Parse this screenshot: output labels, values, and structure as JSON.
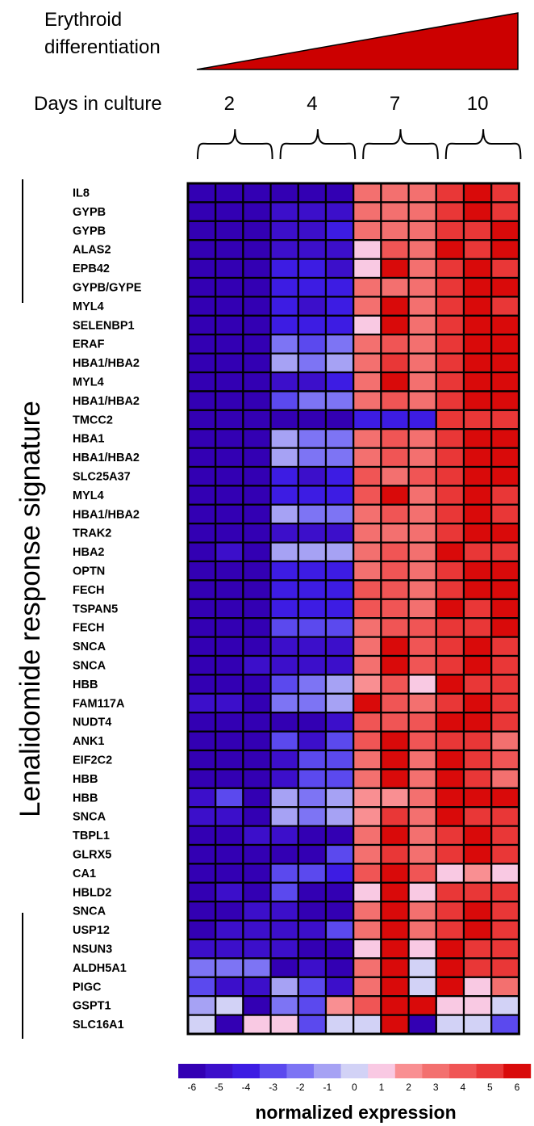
{
  "header": {
    "differentiation_label": [
      "Erythroid",
      "differentiation"
    ],
    "days_label": "Days in culture",
    "triangle_color": "#cc0000"
  },
  "signature_label": "Lenalidomide response signature",
  "legend": {
    "title": "normalized expression",
    "ticks": [
      "-6",
      "-5",
      "-4",
      "-3",
      "-2",
      "-1",
      "0",
      "1",
      "2",
      "3",
      "4",
      "5",
      "6"
    ],
    "colors": [
      "#3300b3",
      "#3c0fca",
      "#3d1ce3",
      "#5b49ee",
      "#7d74f4",
      "#a6a2f4",
      "#d2d2f6",
      "#f9c9e3",
      "#f98f92",
      "#f3706f",
      "#f05555",
      "#e93737",
      "#d90a0a"
    ]
  },
  "chart_data": {
    "type": "heatmap",
    "title": "",
    "xlabel": "Days in culture",
    "ylabel": "Lenalidomide response signature",
    "day_groups": [
      "2",
      "4",
      "7",
      "10"
    ],
    "replicates_per_group": 3,
    "value_range": [
      -6,
      6
    ],
    "rows": [
      {
        "gene": "IL8",
        "values": [
          -6,
          -6,
          -6,
          -6,
          -6,
          -6,
          3,
          3,
          3,
          5,
          6,
          5
        ]
      },
      {
        "gene": "GYPB",
        "values": [
          -6,
          -6,
          -6,
          -5,
          -5,
          -5,
          3,
          3,
          3,
          5,
          6,
          5
        ]
      },
      {
        "gene": "GYPB",
        "values": [
          -6,
          -6,
          -6,
          -5,
          -5,
          -4,
          3,
          3,
          3,
          5,
          5,
          6
        ]
      },
      {
        "gene": "ALAS2",
        "values": [
          -6,
          -6,
          -6,
          -5,
          -5,
          -5,
          1,
          4,
          3,
          6,
          5,
          6
        ]
      },
      {
        "gene": "EPB42",
        "values": [
          -6,
          -6,
          -6,
          -4,
          -4,
          -5,
          1,
          6,
          3,
          5,
          6,
          5
        ]
      },
      {
        "gene": "GYPB/GYPE",
        "values": [
          -6,
          -6,
          -6,
          -4,
          -4,
          -4,
          3,
          3,
          3,
          5,
          6,
          6
        ]
      },
      {
        "gene": "MYL4",
        "values": [
          -6,
          -6,
          -6,
          -4,
          -5,
          -4,
          3,
          6,
          3,
          5,
          6,
          5
        ]
      },
      {
        "gene": "SELENBP1",
        "values": [
          -6,
          -6,
          -6,
          -4,
          -4,
          -4,
          1,
          6,
          3,
          5,
          6,
          6
        ]
      },
      {
        "gene": "ERAF",
        "values": [
          -6,
          -6,
          -6,
          -2,
          -3,
          -2,
          3,
          4,
          3,
          5,
          6,
          6
        ]
      },
      {
        "gene": "HBA1/HBA2",
        "values": [
          -6,
          -6,
          -6,
          -1,
          -2,
          -1,
          3,
          5,
          3,
          5,
          6,
          6
        ]
      },
      {
        "gene": "MYL4",
        "values": [
          -6,
          -6,
          -6,
          -5,
          -5,
          -4,
          3,
          6,
          3,
          5,
          6,
          6
        ]
      },
      {
        "gene": "HBA1/HBA2",
        "values": [
          -6,
          -6,
          -6,
          -3,
          -2,
          -2,
          3,
          4,
          3,
          5,
          6,
          6
        ]
      },
      {
        "gene": "TMCC2",
        "values": [
          -6,
          -6,
          -6,
          -6,
          -6,
          -6,
          -4,
          -4,
          -4,
          5,
          5,
          5
        ]
      },
      {
        "gene": "HBA1",
        "values": [
          -6,
          -6,
          -6,
          -1,
          -2,
          -2,
          3,
          4,
          3,
          5,
          6,
          6
        ]
      },
      {
        "gene": "HBA1/HBA2",
        "values": [
          -6,
          -6,
          -6,
          -1,
          -2,
          -2,
          3,
          4,
          3,
          5,
          6,
          6
        ]
      },
      {
        "gene": "SLC25A37",
        "values": [
          -6,
          -6,
          -6,
          -4,
          -5,
          -4,
          4,
          3,
          4,
          5,
          6,
          6
        ]
      },
      {
        "gene": "MYL4",
        "values": [
          -6,
          -6,
          -6,
          -4,
          -4,
          -4,
          4,
          6,
          3,
          5,
          6,
          5
        ]
      },
      {
        "gene": "HBA1/HBA2",
        "values": [
          -6,
          -6,
          -6,
          -1,
          -2,
          -2,
          3,
          4,
          3,
          5,
          6,
          5
        ]
      },
      {
        "gene": "TRAK2",
        "values": [
          -6,
          -6,
          -6,
          -5,
          -5,
          -5,
          3,
          3,
          3,
          5,
          6,
          6
        ]
      },
      {
        "gene": "HBA2",
        "values": [
          -6,
          -5,
          -6,
          -1,
          -1,
          -1,
          3,
          4,
          3,
          6,
          5,
          5
        ]
      },
      {
        "gene": "OPTN",
        "values": [
          -6,
          -6,
          -6,
          -4,
          -4,
          -4,
          3,
          4,
          3,
          5,
          6,
          6
        ]
      },
      {
        "gene": "FECH",
        "values": [
          -6,
          -6,
          -6,
          -4,
          -4,
          -4,
          4,
          4,
          3,
          5,
          6,
          6
        ]
      },
      {
        "gene": "TSPAN5",
        "values": [
          -6,
          -6,
          -6,
          -4,
          -4,
          -4,
          4,
          4,
          3,
          6,
          5,
          6
        ]
      },
      {
        "gene": "FECH",
        "values": [
          -6,
          -6,
          -6,
          -3,
          -3,
          -3,
          3,
          4,
          4,
          5,
          5,
          6
        ]
      },
      {
        "gene": "SNCA",
        "values": [
          -6,
          -6,
          -6,
          -5,
          -5,
          -5,
          3,
          6,
          4,
          5,
          6,
          5
        ]
      },
      {
        "gene": "SNCA",
        "values": [
          -6,
          -6,
          -5,
          -5,
          -5,
          -5,
          3,
          6,
          4,
          5,
          6,
          5
        ]
      },
      {
        "gene": "HBB",
        "values": [
          -6,
          -6,
          -6,
          -3,
          -2,
          -1,
          2,
          4,
          1,
          6,
          5,
          5
        ]
      },
      {
        "gene": "FAM117A",
        "values": [
          -5,
          -5,
          -6,
          -2,
          -2,
          -1,
          6,
          4,
          3,
          5,
          6,
          5
        ]
      },
      {
        "gene": "NUDT4",
        "values": [
          -6,
          -6,
          -6,
          -6,
          -6,
          -5,
          4,
          4,
          4,
          6,
          6,
          5
        ]
      },
      {
        "gene": "ANK1",
        "values": [
          -6,
          -6,
          -6,
          -3,
          -5,
          -3,
          4,
          6,
          4,
          5,
          5,
          3
        ]
      },
      {
        "gene": "EIF2C2",
        "values": [
          -6,
          -6,
          -6,
          -5,
          -3,
          -3,
          3,
          6,
          3,
          6,
          5,
          4
        ]
      },
      {
        "gene": "HBB",
        "values": [
          -6,
          -6,
          -6,
          -5,
          -3,
          -3,
          3,
          6,
          3,
          6,
          5,
          3
        ]
      },
      {
        "gene": "HBB",
        "values": [
          -5,
          -3,
          -6,
          -1,
          -2,
          -1,
          2,
          2,
          3,
          6,
          6,
          6
        ]
      },
      {
        "gene": "SNCA",
        "values": [
          -5,
          -5,
          -6,
          -1,
          -2,
          -1,
          2,
          5,
          3,
          6,
          5,
          5
        ]
      },
      {
        "gene": "TBPL1",
        "values": [
          -6,
          -6,
          -5,
          -5,
          -6,
          -6,
          3,
          6,
          3,
          5,
          6,
          5
        ]
      },
      {
        "gene": "GLRX5",
        "values": [
          -6,
          -6,
          -6,
          -6,
          -6,
          -3,
          3,
          5,
          3,
          5,
          6,
          5
        ]
      },
      {
        "gene": "CA1",
        "values": [
          -6,
          -6,
          -6,
          -3,
          -3,
          -4,
          4,
          6,
          4,
          1,
          2,
          1
        ]
      },
      {
        "gene": "HBLD2",
        "values": [
          -6,
          -5,
          -6,
          -3,
          -6,
          -6,
          1,
          6,
          1,
          5,
          5,
          5
        ]
      },
      {
        "gene": "SNCA",
        "values": [
          -6,
          -6,
          -5,
          -5,
          -6,
          -6,
          3,
          6,
          3,
          5,
          6,
          5
        ]
      },
      {
        "gene": "USP12",
        "values": [
          -6,
          -5,
          -5,
          -5,
          -5,
          -3,
          3,
          6,
          3,
          5,
          6,
          5
        ]
      },
      {
        "gene": "NSUN3",
        "values": [
          -5,
          -5,
          -5,
          -5,
          -6,
          -6,
          1,
          6,
          1,
          6,
          5,
          5
        ]
      },
      {
        "gene": "ALDH5A1",
        "values": [
          -2,
          -2,
          -2,
          -6,
          -5,
          -6,
          3,
          6,
          0,
          6,
          5,
          5
        ]
      },
      {
        "gene": "PIGC",
        "values": [
          -3,
          -5,
          -5,
          -1,
          -3,
          -5,
          3,
          6,
          0,
          6,
          1,
          3
        ]
      },
      {
        "gene": "GSPT1",
        "values": [
          -1,
          0,
          -6,
          -2,
          -3,
          2,
          4,
          6,
          6,
          1,
          1,
          0
        ]
      },
      {
        "gene": "SLC16A1",
        "values": [
          0,
          -6,
          1,
          1,
          -3,
          0,
          0,
          6,
          -6,
          0,
          0,
          -3
        ]
      }
    ]
  }
}
